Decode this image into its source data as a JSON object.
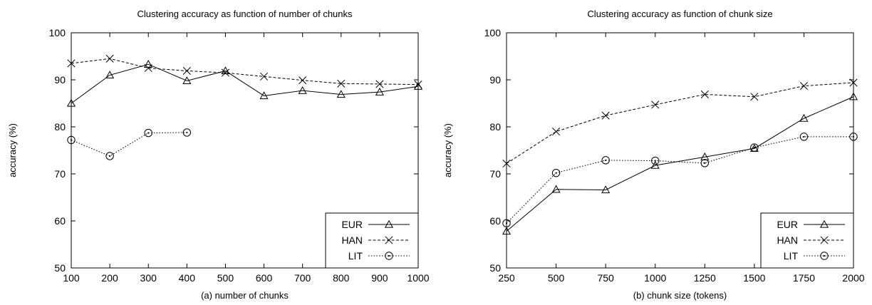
{
  "chart_data": [
    {
      "type": "line",
      "title": "Clustering accuracy as function of number of chunks",
      "xlabel": "(a)  number of chunks",
      "ylabel": "accuracy (%)",
      "x": [
        100,
        200,
        300,
        400,
        500,
        600,
        700,
        800,
        900,
        1000
      ],
      "xticks": [
        100,
        200,
        300,
        400,
        500,
        600,
        700,
        800,
        900,
        1000
      ],
      "yticks": [
        50,
        60,
        70,
        80,
        90,
        100
      ],
      "xlim": [
        100,
        1000
      ],
      "ylim": [
        50,
        100
      ],
      "grid": false,
      "legend_position": "bottom-right",
      "series": [
        {
          "name": "EUR",
          "marker": "triangle",
          "dash": "solid",
          "values": [
            85.0,
            91.0,
            93.3,
            89.8,
            91.9,
            86.6,
            87.7,
            86.9,
            87.4,
            88.6
          ]
        },
        {
          "name": "HAN",
          "marker": "x",
          "dash": "dashed",
          "values": [
            93.5,
            94.5,
            92.5,
            91.9,
            91.5,
            90.7,
            89.9,
            89.2,
            89.1,
            89.0
          ]
        },
        {
          "name": "LIT",
          "marker": "circle",
          "dash": "dotted",
          "values": [
            77.2,
            73.8,
            78.7,
            78.8,
            null,
            null,
            null,
            null,
            null,
            null
          ]
        }
      ]
    },
    {
      "type": "line",
      "title": "Clustering accuracy as function of chunk size",
      "xlabel": "(b)  chunk size (tokens)",
      "ylabel": "accuracy (%)",
      "x": [
        250,
        500,
        750,
        1000,
        1250,
        1500,
        1750,
        2000
      ],
      "xticks": [
        250,
        500,
        750,
        1000,
        1250,
        1500,
        1750,
        2000
      ],
      "yticks": [
        50,
        60,
        70,
        80,
        90,
        100
      ],
      "xlim": [
        250,
        2000
      ],
      "ylim": [
        50,
        100
      ],
      "grid": false,
      "legend_position": "bottom-right",
      "series": [
        {
          "name": "EUR",
          "marker": "triangle",
          "dash": "solid",
          "values": [
            57.8,
            66.7,
            66.6,
            71.8,
            73.6,
            75.4,
            81.8,
            86.4
          ]
        },
        {
          "name": "HAN",
          "marker": "x",
          "dash": "dashed",
          "values": [
            72.2,
            79.0,
            82.4,
            84.7,
            86.9,
            86.4,
            88.7,
            89.4
          ]
        },
        {
          "name": "LIT",
          "marker": "circle",
          "dash": "dotted",
          "values": [
            59.5,
            70.2,
            72.9,
            72.8,
            72.3,
            75.6,
            77.9,
            77.9
          ]
        }
      ]
    }
  ]
}
